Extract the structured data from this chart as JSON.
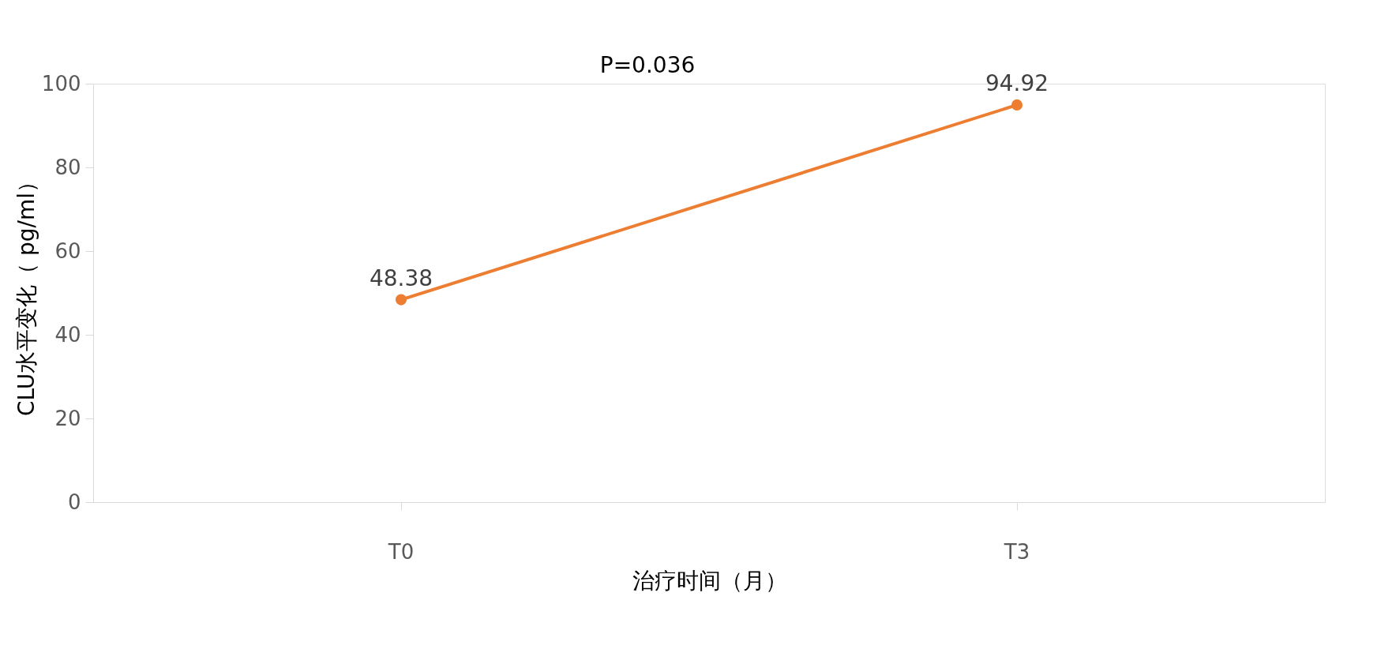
{
  "chart_data": {
    "type": "line",
    "xlabel": "治疗时间（月）",
    "ylabel": "CLU水平变化（ pg/ml）",
    "categories": [
      "T0",
      "T3"
    ],
    "series": [
      {
        "color": "#ed7d31",
        "values": [
          48.38,
          94.92
        ]
      }
    ],
    "ylim": [
      0,
      100
    ],
    "yticks": [
      0,
      20,
      40,
      60,
      80,
      100
    ],
    "grid": false,
    "marker": "circle",
    "data_labels": true,
    "annotations": [
      "P=0.036"
    ]
  }
}
